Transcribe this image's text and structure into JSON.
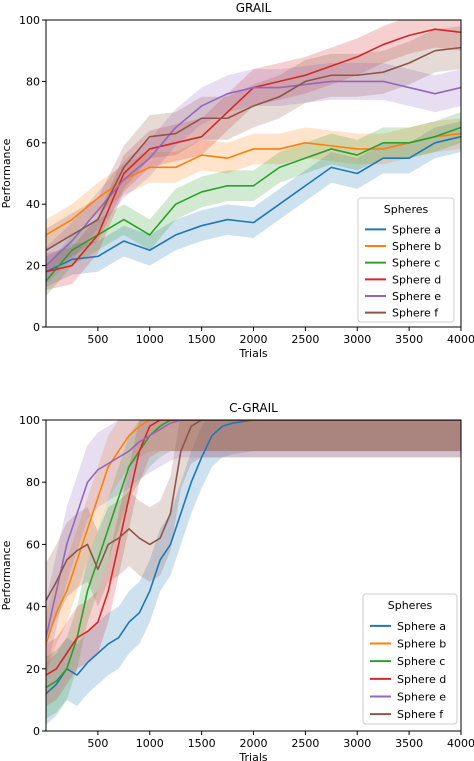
{
  "chart_data": [
    {
      "type": "line",
      "title": "GRAIL",
      "xlabel": "Trials",
      "ylabel": "Performance",
      "xlim": [
        0,
        4000
      ],
      "ylim": [
        0,
        100
      ],
      "x_ticks": [
        "500",
        "1000",
        "1500",
        "2000",
        "2500",
        "3000",
        "3500",
        "4000"
      ],
      "y_ticks": [
        "0",
        "20",
        "40",
        "60",
        "80",
        "100"
      ],
      "grid": false,
      "legend": {
        "title": "Spheres",
        "placement": "lower-right",
        "entries": [
          "Sphere a",
          "Sphere b",
          "Sphere c",
          "Sphere d",
          "Sphere e",
          "Sphere f"
        ]
      },
      "band_half_width": [
        5,
        5,
        5,
        6,
        6,
        7
      ],
      "x": [
        0,
        250,
        500,
        750,
        1000,
        1250,
        1500,
        1750,
        2000,
        2250,
        2500,
        2750,
        3000,
        3250,
        3500,
        3750,
        4000
      ],
      "series": [
        {
          "name": "Sphere a",
          "color": "#1f77b4",
          "values": [
            18,
            22,
            23,
            28,
            25,
            30,
            33,
            35,
            34,
            40,
            46,
            52,
            50,
            55,
            55,
            60,
            62
          ]
        },
        {
          "name": "Sphere b",
          "color": "#ff7f0e",
          "values": [
            30,
            35,
            42,
            48,
            52,
            52,
            56,
            55,
            58,
            58,
            60,
            59,
            58,
            58,
            60,
            62,
            63
          ]
        },
        {
          "name": "Sphere c",
          "color": "#2ca02c",
          "values": [
            15,
            25,
            30,
            35,
            30,
            40,
            44,
            46,
            46,
            52,
            55,
            58,
            56,
            60,
            60,
            62,
            65
          ]
        },
        {
          "name": "Sphere d",
          "color": "#d62728",
          "values": [
            18,
            20,
            30,
            50,
            58,
            60,
            62,
            70,
            78,
            80,
            82,
            85,
            88,
            92,
            95,
            97,
            96
          ]
        },
        {
          "name": "Sphere e",
          "color": "#9467bd",
          "values": [
            20,
            28,
            38,
            48,
            55,
            65,
            72,
            76,
            78,
            78,
            79,
            80,
            80,
            80,
            78,
            76,
            78
          ]
        },
        {
          "name": "Sphere f",
          "color": "#8c564b",
          "values": [
            25,
            30,
            35,
            52,
            62,
            63,
            68,
            68,
            72,
            75,
            80,
            82,
            82,
            83,
            86,
            90,
            91
          ]
        }
      ]
    },
    {
      "type": "line",
      "title": "C-GRAIL",
      "xlabel": "Trials",
      "ylabel": "Performance",
      "xlim": [
        0,
        4000
      ],
      "ylim": [
        0,
        100
      ],
      "x_ticks": [
        "500",
        "1000",
        "1500",
        "2000",
        "2500",
        "3000",
        "3500",
        "4000"
      ],
      "y_ticks": [
        "0",
        "20",
        "40",
        "60",
        "80",
        "100"
      ],
      "grid": false,
      "legend": {
        "title": "Spheres",
        "placement": "lower-right",
        "entries": [
          "Sphere a",
          "Sphere b",
          "Sphere c",
          "Sphere d",
          "Sphere e",
          "Sphere f"
        ]
      },
      "band_half_width": [
        10,
        10,
        10,
        10,
        12,
        12
      ],
      "x": [
        0,
        100,
        200,
        300,
        400,
        500,
        600,
        700,
        800,
        900,
        1000,
        1100,
        1200,
        1300,
        1400,
        1500,
        1600,
        1700,
        1800,
        2000,
        2500,
        3000,
        3500,
        4000
      ],
      "series": [
        {
          "name": "Sphere a",
          "color": "#1f77b4",
          "values": [
            12,
            15,
            20,
            18,
            22,
            25,
            28,
            30,
            35,
            38,
            45,
            55,
            60,
            70,
            80,
            88,
            95,
            98,
            99,
            100,
            100,
            100,
            100,
            100
          ]
        },
        {
          "name": "Sphere b",
          "color": "#ff7f0e",
          "values": [
            28,
            38,
            45,
            55,
            65,
            75,
            85,
            90,
            95,
            98,
            100,
            100,
            100,
            100,
            100,
            100,
            100,
            100,
            100,
            100,
            100,
            100,
            100,
            100
          ]
        },
        {
          "name": "Sphere c",
          "color": "#2ca02c",
          "values": [
            14,
            16,
            20,
            30,
            45,
            55,
            65,
            75,
            85,
            90,
            95,
            98,
            100,
            100,
            100,
            100,
            100,
            100,
            100,
            100,
            100,
            100,
            100,
            100
          ]
        },
        {
          "name": "Sphere d",
          "color": "#d62728",
          "values": [
            18,
            20,
            25,
            30,
            32,
            35,
            45,
            60,
            75,
            90,
            98,
            100,
            100,
            100,
            100,
            100,
            100,
            100,
            100,
            100,
            100,
            100,
            100,
            100
          ]
        },
        {
          "name": "Sphere e",
          "color": "#9467bd",
          "values": [
            30,
            45,
            60,
            70,
            80,
            84,
            86,
            88,
            90,
            93,
            95,
            97,
            99,
            100,
            100,
            100,
            100,
            100,
            100,
            100,
            100,
            100,
            100,
            100
          ]
        },
        {
          "name": "Sphere f",
          "color": "#8c564b",
          "values": [
            42,
            48,
            55,
            58,
            60,
            52,
            60,
            62,
            65,
            62,
            60,
            62,
            70,
            90,
            98,
            100,
            100,
            100,
            100,
            100,
            100,
            100,
            100,
            100
          ]
        }
      ]
    }
  ]
}
